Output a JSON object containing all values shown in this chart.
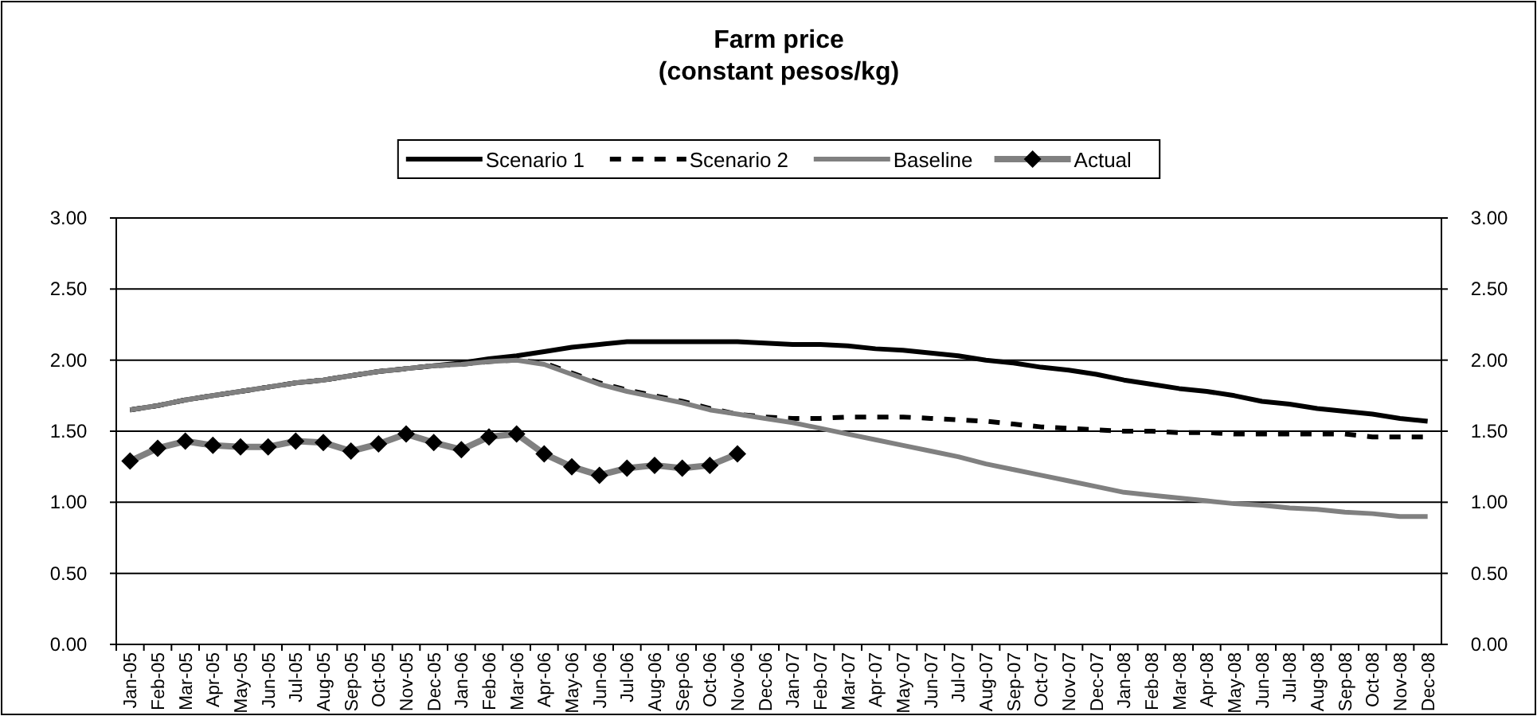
{
  "chart_data": {
    "type": "line",
    "title": "Farm price\n(constant pesos/kg)",
    "categories": [
      "Jan-05",
      "Feb-05",
      "Mar-05",
      "Apr-05",
      "May-05",
      "Jun-05",
      "Jul-05",
      "Aug-05",
      "Sep-05",
      "Oct-05",
      "Nov-05",
      "Dec-05",
      "Jan-06",
      "Feb-06",
      "Mar-06",
      "Apr-06",
      "May-06",
      "Jun-06",
      "Jul-06",
      "Aug-06",
      "Sep-06",
      "Oct-06",
      "Nov-06",
      "Dec-06",
      "Jan-07",
      "Feb-07",
      "Mar-07",
      "Apr-07",
      "May-07",
      "Jun-07",
      "Jul-07",
      "Aug-07",
      "Sep-07",
      "Oct-07",
      "Nov-07",
      "Dec-07",
      "Jan-08",
      "Feb-08",
      "Mar-08",
      "Apr-08",
      "May-08",
      "Jun-08",
      "Jul-08",
      "Aug-08",
      "Sep-08",
      "Oct-08",
      "Nov-08",
      "Dec-08"
    ],
    "series": [
      {
        "name": "Scenario 1",
        "color": "#000000",
        "line_style": "solid",
        "marker": "none",
        "values": [
          1.65,
          1.68,
          1.72,
          1.75,
          1.78,
          1.81,
          1.84,
          1.86,
          1.89,
          1.92,
          1.94,
          1.96,
          1.98,
          2.01,
          2.03,
          2.06,
          2.09,
          2.11,
          2.13,
          2.13,
          2.13,
          2.13,
          2.13,
          2.12,
          2.11,
          2.11,
          2.1,
          2.08,
          2.07,
          2.05,
          2.03,
          2.0,
          1.98,
          1.95,
          1.93,
          1.9,
          1.86,
          1.83,
          1.8,
          1.78,
          1.75,
          1.71,
          1.69,
          1.66,
          1.64,
          1.62,
          1.59,
          1.57
        ]
      },
      {
        "name": "Scenario 2",
        "color": "#000000",
        "line_style": "dashed",
        "marker": "none",
        "values": [
          1.65,
          1.68,
          1.72,
          1.75,
          1.78,
          1.81,
          1.84,
          1.86,
          1.89,
          1.92,
          1.94,
          1.96,
          1.97,
          1.99,
          2.0,
          1.98,
          1.91,
          1.84,
          1.79,
          1.75,
          1.71,
          1.66,
          1.62,
          1.6,
          1.59,
          1.59,
          1.6,
          1.6,
          1.6,
          1.59,
          1.58,
          1.57,
          1.55,
          1.53,
          1.52,
          1.51,
          1.5,
          1.5,
          1.49,
          1.49,
          1.48,
          1.48,
          1.48,
          1.48,
          1.48,
          1.46,
          1.46,
          1.46
        ]
      },
      {
        "name": "Baseline",
        "color": "#808080",
        "line_style": "solid",
        "marker": "none",
        "values": [
          1.65,
          1.68,
          1.72,
          1.75,
          1.78,
          1.81,
          1.84,
          1.86,
          1.89,
          1.92,
          1.94,
          1.96,
          1.97,
          1.99,
          2.0,
          1.97,
          1.9,
          1.83,
          1.78,
          1.74,
          1.7,
          1.65,
          1.62,
          1.59,
          1.56,
          1.52,
          1.48,
          1.44,
          1.4,
          1.36,
          1.32,
          1.27,
          1.23,
          1.19,
          1.15,
          1.11,
          1.07,
          1.05,
          1.03,
          1.01,
          0.99,
          0.98,
          0.96,
          0.95,
          0.93,
          0.92,
          0.9,
          0.9
        ]
      },
      {
        "name": "Actual",
        "color": "#808080",
        "line_style": "solid",
        "marker": "diamond",
        "values": [
          1.29,
          1.38,
          1.43,
          1.4,
          1.39,
          1.39,
          1.43,
          1.42,
          1.36,
          1.41,
          1.48,
          1.42,
          1.37,
          1.46,
          1.48,
          1.34,
          1.25,
          1.19,
          1.24,
          1.26,
          1.24,
          1.26,
          1.34,
          null,
          null,
          null,
          null,
          null,
          null,
          null,
          null,
          null,
          null,
          null,
          null,
          null,
          null,
          null,
          null,
          null,
          null,
          null,
          null,
          null,
          null,
          null,
          null,
          null
        ]
      }
    ],
    "ylim": [
      0,
      3
    ],
    "yticks": [
      {
        "value": 0,
        "label": "0.00"
      },
      {
        "value": 0.5,
        "label": "0.50"
      },
      {
        "value": 1,
        "label": "1.00"
      },
      {
        "value": 1.5,
        "label": "1.50"
      },
      {
        "value": 2,
        "label": "2.00"
      },
      {
        "value": 2.5,
        "label": "2.50"
      },
      {
        "value": 3,
        "label": "3.00"
      }
    ],
    "y2lim": [
      0,
      3
    ],
    "y2ticks": [
      {
        "value": 0,
        "label": "0.00"
      },
      {
        "value": 0.5,
        "label": "0.50"
      },
      {
        "value": 1,
        "label": "1.00"
      },
      {
        "value": 1.5,
        "label": "1.50"
      },
      {
        "value": 2,
        "label": "2.00"
      },
      {
        "value": 2.5,
        "label": "2.50"
      },
      {
        "value": 3,
        "label": "3.00"
      }
    ],
    "grid": "y",
    "legend": "top"
  }
}
